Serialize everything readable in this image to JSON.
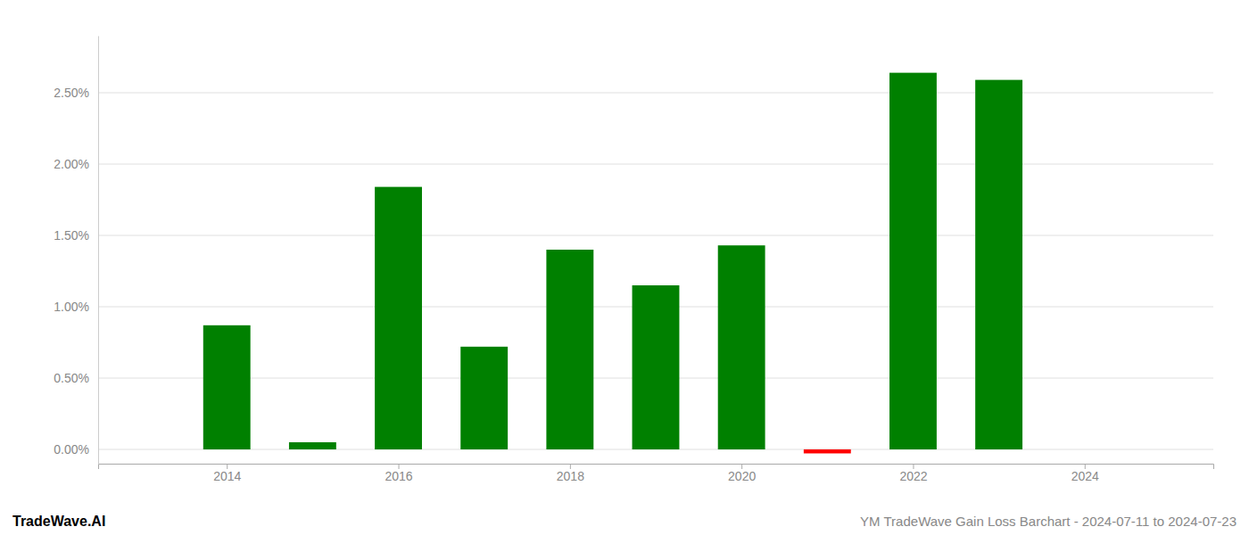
{
  "chart_data": {
    "type": "bar",
    "title": "YM TradeWave Gain Loss Barchart - 2024-07-11 to 2024-07-23",
    "annotations": [
      "TradeWave.AI"
    ],
    "x": [
      2014,
      2015,
      2016,
      2017,
      2018,
      2019,
      2020,
      2021,
      2022,
      2023
    ],
    "values": [
      0.0087,
      0.0005,
      0.0184,
      0.0072,
      0.014,
      0.0115,
      0.0143,
      -0.00028,
      0.0264,
      0.0259
    ],
    "colors": [
      "#008000",
      "#008000",
      "#008000",
      "#008000",
      "#008000",
      "#008000",
      "#008000",
      "#ff0000",
      "#008000",
      "#008000"
    ],
    "xlim": [
      2012.5,
      2025.5
    ],
    "xticks": [
      2014,
      2016,
      2018,
      2020,
      2022,
      2024
    ],
    "ylim": [
      -0.001,
      0.029
    ],
    "yticks": [
      {
        "value": 0,
        "label": "0.00%"
      },
      {
        "value": 0.005,
        "label": "0.50%"
      },
      {
        "value": 0.01,
        "label": "1.00%"
      },
      {
        "value": 0.015,
        "label": "1.50%"
      },
      {
        "value": 0.02,
        "label": "2.00%"
      },
      {
        "value": 0.025,
        "label": "2.50%"
      }
    ],
    "grid": true
  }
}
